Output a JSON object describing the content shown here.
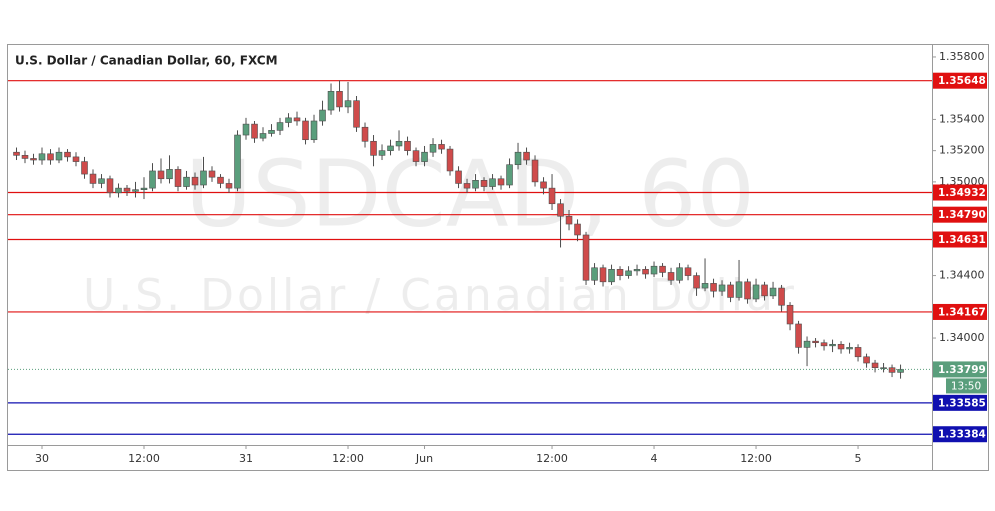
{
  "chart_data": {
    "type": "candlestick",
    "title": "U.S. Dollar / Canadian Dollar, 60, FXCM",
    "watermark": [
      "USDCAD, 60",
      "U.S. Dollar / Canadian Dollar"
    ],
    "up_color": "#5a9e7c",
    "down_color": "#cf4b4b",
    "wick_color": "#4d4d4d",
    "xlim": [
      -1,
      107.7
    ],
    "xticks": [
      {
        "value": 3,
        "label": "30"
      },
      {
        "value": 15,
        "label": "12:00"
      },
      {
        "value": 27,
        "label": "31"
      },
      {
        "value": 39,
        "label": "12:00"
      },
      {
        "value": 48,
        "label": "Jun"
      },
      {
        "value": 63,
        "label": "12:00"
      },
      {
        "value": 75,
        "label": "4"
      },
      {
        "value": 87,
        "label": "12:00"
      },
      {
        "value": 99,
        "label": "5"
      }
    ],
    "ylim": [
      1.33315,
      1.35883
    ],
    "yticks": [
      {
        "value": 1.358,
        "label": "1.35800"
      },
      {
        "value": 1.354,
        "label": "1.35400"
      },
      {
        "value": 1.352,
        "label": "1.35200"
      },
      {
        "value": 1.35,
        "label": "1.35000"
      },
      {
        "value": 1.344,
        "label": "1.34400"
      },
      {
        "value": 1.34,
        "label": "1.34000"
      }
    ],
    "levels": [
      {
        "value": 1.35648,
        "label": "1.35648",
        "color": "#e01010"
      },
      {
        "value": 1.34932,
        "label": "1.34932",
        "color": "#e01010"
      },
      {
        "value": 1.3479,
        "label": "1.34790",
        "color": "#e01010"
      },
      {
        "value": 1.34631,
        "label": "1.34631",
        "color": "#e01010"
      },
      {
        "value": 1.34167,
        "label": "1.34167",
        "color": "#e01010"
      },
      {
        "value": 1.33585,
        "label": "1.33585",
        "color": "#1010b0"
      },
      {
        "value": 1.33384,
        "label": "1.33384",
        "color": "#1010b0"
      }
    ],
    "last_price": {
      "value": 1.33799,
      "label": "1.33799",
      "countdown": "13:50",
      "color": "#5a9e7c"
    },
    "open": [
      1.3519,
      1.3517,
      1.3515,
      1.3514,
      1.3518,
      1.3514,
      1.3519,
      1.3516,
      1.3513,
      1.3505,
      1.3499,
      1.3502,
      1.3493,
      1.3496,
      1.3494,
      1.3495,
      1.3496,
      1.3507,
      1.3502,
      1.3508,
      1.3497,
      1.3503,
      1.3498,
      1.3507,
      1.3503,
      1.3499,
      1.3496,
      1.353,
      1.3537,
      1.3528,
      1.3531,
      1.3533,
      1.3538,
      1.3541,
      1.3539,
      1.3527,
      1.3539,
      1.3546,
      1.3558,
      1.3548,
      1.3552,
      1.3535,
      1.3526,
      1.3517,
      1.352,
      1.3523,
      1.3526,
      1.352,
      1.3513,
      1.3519,
      1.3524,
      1.3521,
      1.3507,
      1.3499,
      1.3496,
      1.3501,
      1.3497,
      1.3502,
      1.3498,
      1.3511,
      1.3519,
      1.3514,
      1.35,
      1.3496,
      1.3486,
      1.3478,
      1.3473,
      1.3466,
      1.3437,
      1.3445,
      1.3436,
      1.3444,
      1.344,
      1.3443,
      1.3444,
      1.3441,
      1.3446,
      1.3442,
      1.3437,
      1.3445,
      1.344,
      1.3432,
      1.3435,
      1.343,
      1.3434,
      1.3426,
      1.3436,
      1.3425,
      1.3434,
      1.3427,
      1.3432,
      1.3421,
      1.3409,
      1.3394,
      1.3398,
      1.3397,
      1.3395,
      1.3396,
      1.3393,
      1.3394,
      1.3388,
      1.3384,
      1.3381,
      1.3381,
      1.3378
    ],
    "high": [
      1.3522,
      1.352,
      1.3518,
      1.3522,
      1.3521,
      1.3522,
      1.3521,
      1.3519,
      1.3516,
      1.3508,
      1.3505,
      1.3504,
      1.3499,
      1.3498,
      1.35,
      1.3503,
      1.3512,
      1.3515,
      1.3517,
      1.351,
      1.3507,
      1.3506,
      1.3516,
      1.351,
      1.3505,
      1.3502,
      1.3533,
      1.3541,
      1.3539,
      1.3535,
      1.3537,
      1.3541,
      1.3544,
      1.3545,
      1.3541,
      1.3543,
      1.3552,
      1.3563,
      1.3565,
      1.3564,
      1.3555,
      1.3538,
      1.353,
      1.3524,
      1.3527,
      1.3533,
      1.3529,
      1.3522,
      1.3523,
      1.3528,
      1.3527,
      1.3523,
      1.351,
      1.3502,
      1.3505,
      1.3503,
      1.3505,
      1.3504,
      1.3515,
      1.3525,
      1.3522,
      1.3517,
      1.3503,
      1.3505,
      1.3489,
      1.3482,
      1.3476,
      1.3468,
      1.3448,
      1.3447,
      1.3447,
      1.3446,
      1.3446,
      1.3447,
      1.3446,
      1.3449,
      1.3448,
      1.3445,
      1.3448,
      1.3447,
      1.3442,
      1.3451,
      1.3438,
      1.3437,
      1.3436,
      1.345,
      1.3438,
      1.3438,
      1.3436,
      1.3436,
      1.3434,
      1.3423,
      1.3411,
      1.3401,
      1.34,
      1.3399,
      1.3399,
      1.3398,
      1.3397,
      1.3396,
      1.339,
      1.3386,
      1.3384,
      1.3383,
      1.3383
    ],
    "low": [
      1.3514,
      1.3512,
      1.3511,
      1.3511,
      1.3511,
      1.3512,
      1.3513,
      1.351,
      1.3502,
      1.3496,
      1.3496,
      1.349,
      1.349,
      1.3491,
      1.349,
      1.3489,
      1.3494,
      1.3499,
      1.3499,
      1.3494,
      1.3495,
      1.3495,
      1.3496,
      1.35,
      1.3496,
      1.3493,
      1.3494,
      1.3527,
      1.3525,
      1.3526,
      1.3529,
      1.353,
      1.3535,
      1.3536,
      1.3524,
      1.3525,
      1.3536,
      1.3543,
      1.3545,
      1.3544,
      1.3532,
      1.3522,
      1.351,
      1.3514,
      1.3517,
      1.352,
      1.3517,
      1.351,
      1.351,
      1.3516,
      1.3518,
      1.3504,
      1.3496,
      1.3493,
      1.3494,
      1.3494,
      1.3495,
      1.3495,
      1.3496,
      1.3508,
      1.3511,
      1.3497,
      1.3492,
      1.3482,
      1.3458,
      1.3469,
      1.3462,
      1.3434,
      1.3434,
      1.3433,
      1.3434,
      1.3437,
      1.3438,
      1.344,
      1.3438,
      1.3439,
      1.3439,
      1.3434,
      1.3435,
      1.3437,
      1.3427,
      1.343,
      1.3426,
      1.3427,
      1.3423,
      1.3424,
      1.3422,
      1.3423,
      1.3424,
      1.3425,
      1.3417,
      1.3405,
      1.339,
      1.3382,
      1.3394,
      1.3392,
      1.3391,
      1.339,
      1.339,
      1.3385,
      1.3381,
      1.3378,
      1.3378,
      1.3375,
      1.3374
    ],
    "close": [
      1.3517,
      1.3515,
      1.3514,
      1.3518,
      1.3514,
      1.3519,
      1.3516,
      1.3513,
      1.3505,
      1.3499,
      1.3502,
      1.3493,
      1.3496,
      1.3494,
      1.3495,
      1.3496,
      1.3507,
      1.3502,
      1.3508,
      1.3497,
      1.3503,
      1.3498,
      1.3507,
      1.3503,
      1.3499,
      1.3496,
      1.353,
      1.3537,
      1.3528,
      1.3531,
      1.3533,
      1.3538,
      1.3541,
      1.3539,
      1.3527,
      1.3539,
      1.3546,
      1.3558,
      1.3548,
      1.3552,
      1.3535,
      1.3526,
      1.3517,
      1.352,
      1.3523,
      1.3526,
      1.352,
      1.3513,
      1.3519,
      1.3524,
      1.3521,
      1.3507,
      1.3499,
      1.3496,
      1.3501,
      1.3497,
      1.3502,
      1.3498,
      1.3511,
      1.3519,
      1.3514,
      1.35,
      1.3496,
      1.3486,
      1.3478,
      1.3473,
      1.3466,
      1.3437,
      1.3445,
      1.3436,
      1.3444,
      1.344,
      1.3443,
      1.3444,
      1.3441,
      1.3446,
      1.3442,
      1.3437,
      1.3445,
      1.344,
      1.3432,
      1.3435,
      1.343,
      1.3434,
      1.3426,
      1.3436,
      1.3425,
      1.3434,
      1.3427,
      1.3432,
      1.3421,
      1.3409,
      1.3394,
      1.3398,
      1.3397,
      1.3395,
      1.3396,
      1.3393,
      1.3394,
      1.3388,
      1.3384,
      1.3381,
      1.3381,
      1.3378,
      1.33799
    ]
  }
}
